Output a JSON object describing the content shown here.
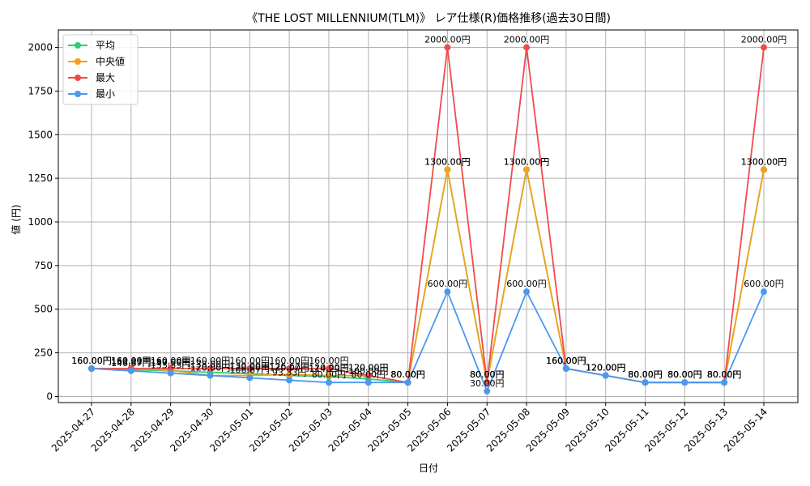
{
  "chart_data": {
    "type": "line",
    "title": "《THE LOST MILLENNIUM(TLM)》 レア仕様(R)価格推移(過去30日間)",
    "xlabel": "日付",
    "ylabel": "値 (円)",
    "ylim": [
      -35,
      2100
    ],
    "yticks": [
      0,
      250,
      500,
      750,
      1000,
      1250,
      1500,
      1750,
      2000
    ],
    "grid": true,
    "legend_position": "top-left",
    "label_suffix": "円",
    "categories": [
      "2025-04-27",
      "2025-04-28",
      "2025-04-29",
      "2025-04-30",
      "2025-05-01",
      "2025-05-02",
      "2025-05-03",
      "2025-05-04",
      "2025-05-05",
      "2025-05-06",
      "2025-05-07",
      "2025-05-08",
      "2025-05-09",
      "2025-05-10",
      "2025-05-11",
      "2025-05-12",
      "2025-05-13",
      "2025-05-14"
    ],
    "series": [
      {
        "name": "平均",
        "color": "#2ecc71",
        "values": [
          160,
          153.33,
          147.5,
          138,
          130,
          120,
          114.29,
          100,
          80,
          1300,
          80,
          1300,
          160,
          120,
          80,
          80,
          80,
          1300
        ]
      },
      {
        "name": "中央値",
        "color": "#f5a01a",
        "values": [
          160,
          160,
          150,
          120,
          120,
          126.67,
          120,
          120,
          80,
          1300,
          80,
          1300,
          160,
          120,
          80,
          80,
          80,
          1300
        ]
      },
      {
        "name": "最大",
        "color": "#ef4b4b",
        "values": [
          160,
          160,
          160,
          160,
          160,
          160,
          160,
          120,
          80,
          2000,
          80,
          2000,
          160,
          120,
          80,
          80,
          80,
          2000
        ]
      },
      {
        "name": "最小",
        "color": "#4a98f0",
        "values": [
          160,
          146.67,
          133.33,
          120,
          106.67,
          93.33,
          80,
          80,
          80,
          600,
          30,
          600,
          160,
          120,
          80,
          80,
          80,
          600
        ]
      }
    ]
  }
}
